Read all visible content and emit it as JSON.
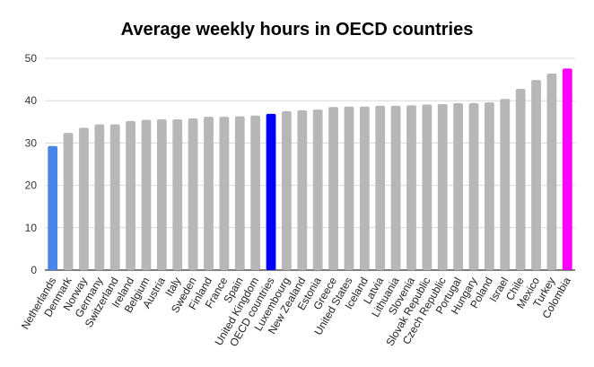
{
  "chart_data": {
    "type": "bar",
    "title": "Average weekly hours in OECD countries",
    "xlabel": "",
    "ylabel": "",
    "ylim": [
      0,
      50
    ],
    "yticks": [
      0,
      10,
      20,
      30,
      40,
      50
    ],
    "grid": true,
    "legend": "none",
    "categories": [
      "Netherlands",
      "Denmark",
      "Norway",
      "Germany",
      "Switzerland",
      "Ireland",
      "Belgium",
      "Austria",
      "Italy",
      "Sweden",
      "Finland",
      "France",
      "Spain",
      "United Kingdom",
      "OECD countries",
      "Luxembourg",
      "New Zealand",
      "Estonia",
      "Greece",
      "United States",
      "Iceland",
      "Latvia",
      "Lithuania",
      "Slovenia",
      "Slovak Republic",
      "Czech Republic",
      "Portugal",
      "Hungary",
      "Poland",
      "Israel",
      "Chile",
      "Mexico",
      "Turkey",
      "Colombia"
    ],
    "values": [
      29.3,
      32.4,
      33.6,
      34.4,
      34.4,
      35.2,
      35.5,
      35.6,
      35.6,
      35.8,
      36.2,
      36.2,
      36.3,
      36.5,
      36.9,
      37.5,
      37.7,
      37.9,
      38.5,
      38.6,
      38.6,
      38.8,
      38.8,
      38.9,
      39.1,
      39.2,
      39.4,
      39.4,
      39.6,
      40.4,
      42.8,
      44.9,
      46.4,
      47.6
    ],
    "bar_colors": [
      "#4a86e8",
      "#b7b7b7",
      "#b7b7b7",
      "#b7b7b7",
      "#b7b7b7",
      "#b7b7b7",
      "#b7b7b7",
      "#b7b7b7",
      "#b7b7b7",
      "#b7b7b7",
      "#b7b7b7",
      "#b7b7b7",
      "#b7b7b7",
      "#b7b7b7",
      "#0000ff",
      "#b7b7b7",
      "#b7b7b7",
      "#b7b7b7",
      "#b7b7b7",
      "#b7b7b7",
      "#b7b7b7",
      "#b7b7b7",
      "#b7b7b7",
      "#b7b7b7",
      "#b7b7b7",
      "#b7b7b7",
      "#b7b7b7",
      "#b7b7b7",
      "#b7b7b7",
      "#b7b7b7",
      "#b7b7b7",
      "#b7b7b7",
      "#b7b7b7",
      "#ff00ff"
    ]
  }
}
